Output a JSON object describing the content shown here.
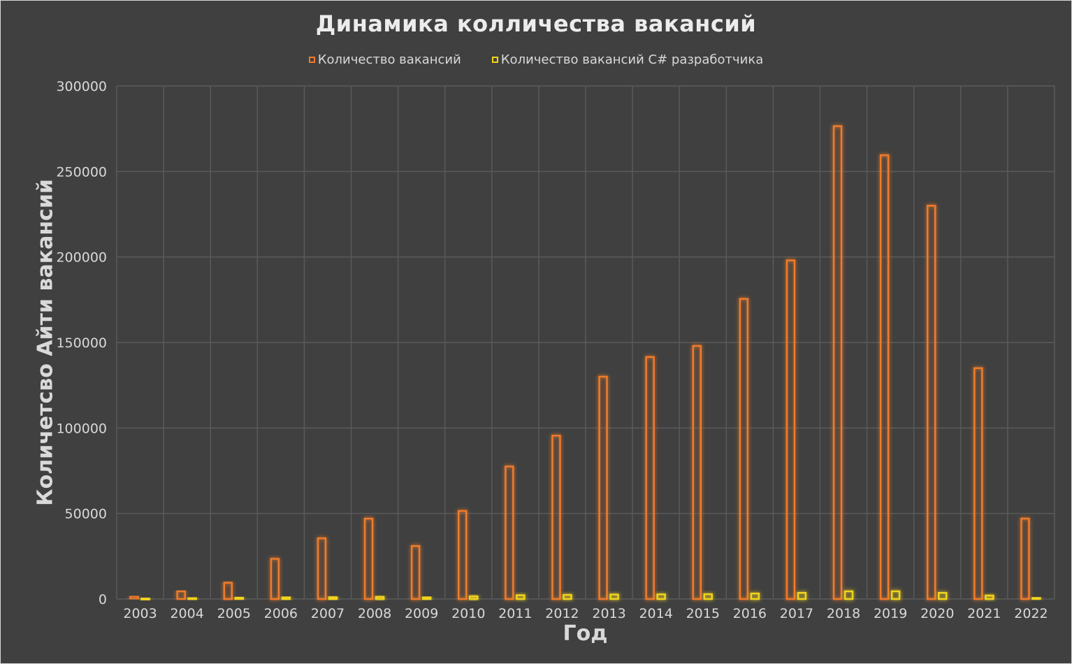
{
  "colors": {
    "background": "#404040",
    "grid": "#5a5a5a",
    "text": "#d9d9d9",
    "series1": "#f07b2a",
    "series2": "#f2d41a"
  },
  "chart_data": {
    "type": "bar",
    "title": "Динамика колличества вакансий",
    "xlabel": "Год",
    "ylabel": "Количетсво Айти вакансий",
    "ylim": [
      0,
      300000
    ],
    "yticks": [
      "0",
      "50000",
      "100000",
      "150000",
      "200000",
      "250000",
      "300000"
    ],
    "grid": true,
    "legend_position": "top",
    "categories": [
      "2003",
      "2004",
      "2005",
      "2006",
      "2007",
      "2008",
      "2009",
      "2010",
      "2011",
      "2012",
      "2013",
      "2014",
      "2015",
      "2016",
      "2017",
      "2018",
      "2019",
      "2020",
      "2021",
      "2022"
    ],
    "series": [
      {
        "name": "Количество вакансий",
        "color": "#f07b2a",
        "values": [
          1500,
          4500,
          9500,
          23500,
          35500,
          47000,
          31000,
          51500,
          77500,
          95500,
          130000,
          141500,
          148000,
          175500,
          198000,
          276500,
          259500,
          230000,
          135000,
          47000
        ]
      },
      {
        "name": "Количество вакансий C# разработчика",
        "color": "#f2d41a",
        "values": [
          300,
          500,
          700,
          900,
          1000,
          1200,
          900,
          1500,
          2200,
          2400,
          2600,
          2700,
          2800,
          3200,
          3600,
          4500,
          4500,
          3600,
          2000,
          600
        ]
      }
    ]
  }
}
